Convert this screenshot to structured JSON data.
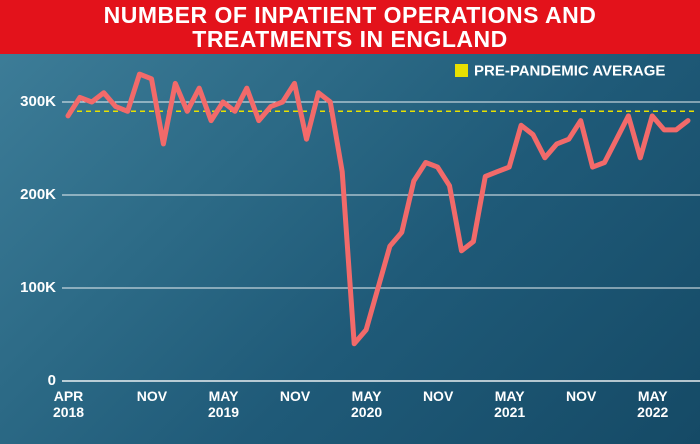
{
  "chart_data": {
    "type": "line",
    "title": "NUMBER OF INPATIENT OPERATIONS AND TREATMENTS IN ENGLAND",
    "categories": [
      "APR 2018",
      null,
      null,
      null,
      null,
      null,
      null,
      "NOV",
      null,
      null,
      null,
      null,
      null,
      "MAY 2019",
      null,
      null,
      null,
      null,
      null,
      "NOV",
      null,
      null,
      null,
      null,
      null,
      "MAY 2020",
      null,
      null,
      null,
      null,
      null,
      "NOV",
      null,
      null,
      null,
      null,
      null,
      "MAY 2021",
      null,
      null,
      null,
      null,
      null,
      "NOV",
      null,
      null,
      null,
      null,
      null,
      "MAY 2022",
      null,
      null,
      null
    ],
    "series": [
      {
        "name": "Inpatient operations and treatments",
        "color": "#f26a6a",
        "values": [
          285000,
          305000,
          300000,
          310000,
          295000,
          290000,
          330000,
          325000,
          255000,
          320000,
          290000,
          315000,
          280000,
          300000,
          290000,
          315000,
          280000,
          295000,
          300000,
          320000,
          260000,
          310000,
          300000,
          225000,
          40000,
          55000,
          100000,
          145000,
          160000,
          215000,
          235000,
          230000,
          210000,
          140000,
          150000,
          220000,
          225000,
          230000,
          275000,
          265000,
          240000,
          255000,
          260000,
          280000,
          230000,
          235000,
          260000,
          285000,
          240000,
          285000,
          270000,
          270000,
          280000
        ]
      }
    ],
    "reference_line": {
      "label": "PRE-PANDEMIC AVERAGE",
      "value": 290000,
      "color": "#e8e000"
    },
    "ylim": [
      0,
      350000
    ],
    "yticks": [
      0,
      {
        "value": 100000,
        "label": "100K"
      },
      {
        "value": 200000,
        "label": "200K"
      },
      {
        "value": 300000,
        "label": "300K"
      }
    ],
    "grid": true
  }
}
